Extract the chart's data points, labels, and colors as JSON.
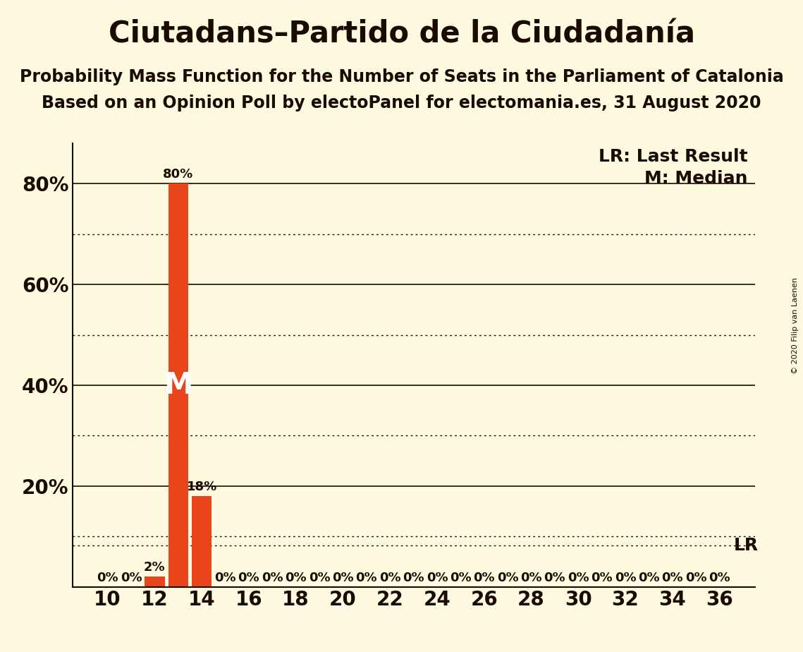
{
  "title": "Ciutadans–Partido de la Ciudadanía",
  "subtitle1": "Probability Mass Function for the Number of Seats in the Parliament of Catalonia",
  "subtitle2": "Based on an Opinion Poll by electoPanel for electomania.es, 31 August 2020",
  "copyright": "© 2020 Filip van Laenen",
  "seats": [
    10,
    11,
    12,
    13,
    14,
    15,
    16,
    17,
    18,
    19,
    20,
    21,
    22,
    23,
    24,
    25,
    26,
    27,
    28,
    29,
    30,
    31,
    32,
    33,
    34,
    35,
    36
  ],
  "probabilities": [
    0,
    0,
    0.02,
    0.8,
    0.18,
    0,
    0,
    0,
    0,
    0,
    0,
    0,
    0,
    0,
    0,
    0,
    0,
    0,
    0,
    0,
    0,
    0,
    0,
    0,
    0,
    0,
    0
  ],
  "bar_color": "#E8451A",
  "background_color": "#FEFAE0",
  "text_color": "#1A0A00",
  "median_seat": 13,
  "last_result_value": 0.082,
  "ylim_max": 0.88,
  "solid_gridlines": [
    0.2,
    0.4,
    0.6,
    0.8
  ],
  "dotted_gridlines": [
    0.1,
    0.3,
    0.5,
    0.7
  ],
  "ytick_positions": [
    0.2,
    0.4,
    0.6,
    0.8
  ],
  "ytick_labels": [
    "20%",
    "40%",
    "60%",
    "80%"
  ],
  "title_fontsize": 30,
  "subtitle_fontsize": 17,
  "axis_fontsize": 20,
  "bar_label_fontsize": 13,
  "annotation_fontsize": 18,
  "median_fontsize": 30
}
